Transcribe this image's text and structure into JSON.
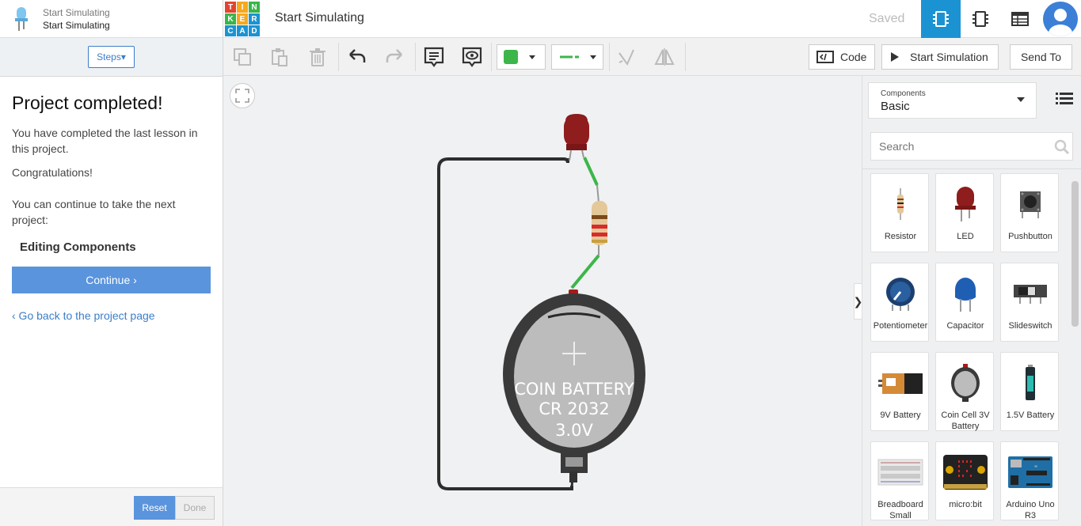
{
  "lesson_header": {
    "subtitle": "Start Simulating",
    "title": "Start Simulating"
  },
  "steps_label": "Steps▾",
  "lesson": {
    "heading": "Project completed!",
    "p1": "You have completed the last lesson in this project.",
    "p2": "Congratulations!",
    "p3": "You can continue to take the next project:",
    "next_project": "Editing Components",
    "continue_label": "Continue ›",
    "back_link": "‹ Go back to the project page"
  },
  "footer": {
    "reset": "Reset",
    "done": "Done"
  },
  "topbar": {
    "logo_letters": [
      "T",
      "I",
      "N",
      "K",
      "E",
      "R",
      "C",
      "A",
      "D"
    ],
    "project_title": "Start Simulating",
    "saved": "Saved"
  },
  "toolbar": {
    "code_label": "Code",
    "start_sim_label": "Start Simulation",
    "send_to_label": "Send To",
    "wire_color": "#3cb649"
  },
  "canvas": {
    "battery_line1": "COIN BATTERY",
    "battery_line2": "CR 2032",
    "battery_line3": "3.0V"
  },
  "components": {
    "select_label": "Components",
    "select_value": "Basic",
    "search_placeholder": "Search",
    "items": [
      {
        "name": "Resistor",
        "icon": "resistor-icon"
      },
      {
        "name": "LED",
        "icon": "led-icon"
      },
      {
        "name": "Pushbutton",
        "icon": "pushbutton-icon"
      },
      {
        "name": "Potentiometer",
        "icon": "potentiometer-icon"
      },
      {
        "name": "Capacitor",
        "icon": "capacitor-icon"
      },
      {
        "name": "Slideswitch",
        "icon": "slideswitch-icon"
      },
      {
        "name": "9V Battery",
        "icon": "battery-9v-icon"
      },
      {
        "name": "Coin Cell 3V Battery",
        "icon": "coin-cell-icon"
      },
      {
        "name": "1.5V Battery",
        "icon": "battery-aa-icon"
      },
      {
        "name": "Breadboard Small",
        "icon": "breadboard-icon"
      },
      {
        "name": "micro:bit",
        "icon": "microbit-icon"
      },
      {
        "name": "Arduino Uno R3",
        "icon": "arduino-icon"
      }
    ]
  }
}
